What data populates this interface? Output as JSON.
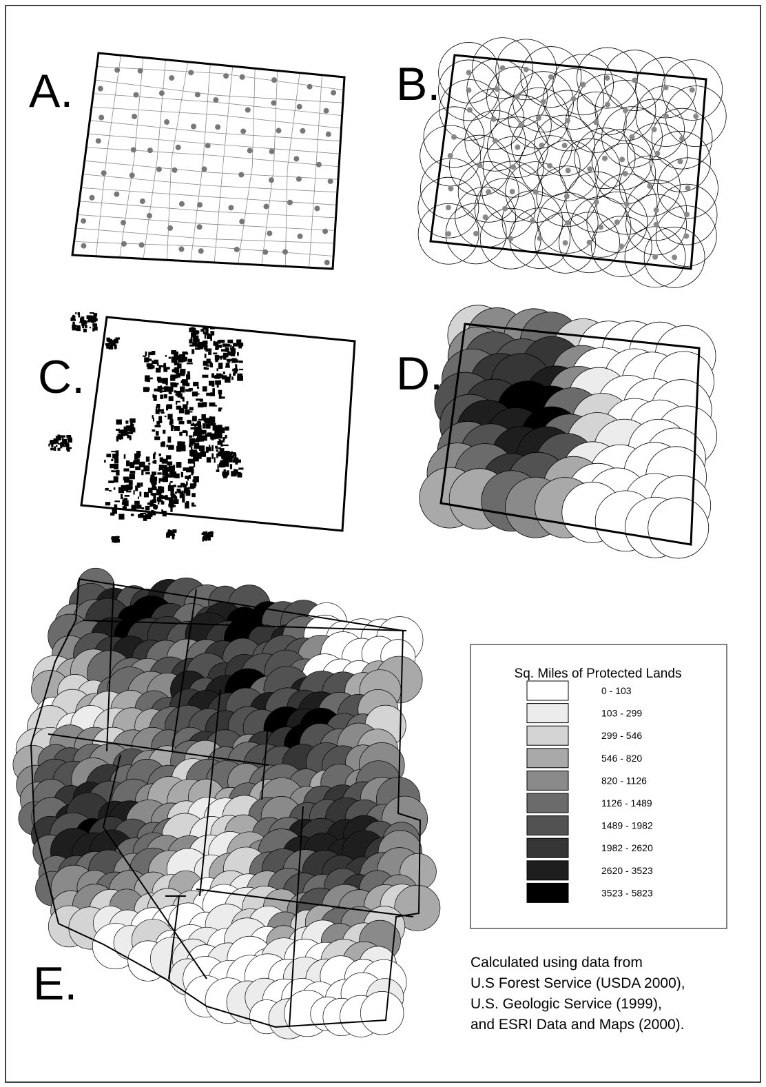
{
  "panels": [
    {
      "label": "A."
    },
    {
      "label": "B."
    },
    {
      "label": "C."
    },
    {
      "label": "D."
    },
    {
      "label": "E."
    }
  ],
  "legend": {
    "title": "Sq. Miles of Protected Lands",
    "items": [
      {
        "label": "0 - 103",
        "color": "#ffffff"
      },
      {
        "label": "103 - 299",
        "color": "#ececec"
      },
      {
        "label": "299 - 546",
        "color": "#d4d4d4"
      },
      {
        "label": "546 - 820",
        "color": "#a9a9a9"
      },
      {
        "label": "820 - 1126",
        "color": "#8a8a8a"
      },
      {
        "label": "1126 - 1489",
        "color": "#6b6b6b"
      },
      {
        "label": "1489 - 1982",
        "color": "#525252"
      },
      {
        "label": "1982 - 2620",
        "color": "#363636"
      },
      {
        "label": "2620 - 3523",
        "color": "#1e1e1e"
      },
      {
        "label": "3523 - 5823",
        "color": "#000000"
      }
    ]
  },
  "source": [
    "Calculated using data from",
    "U.S Forest Service (USDA 2000),",
    "U.S. Geologic Service (1999),",
    "and ESRI Data and Maps (2000)."
  ]
}
